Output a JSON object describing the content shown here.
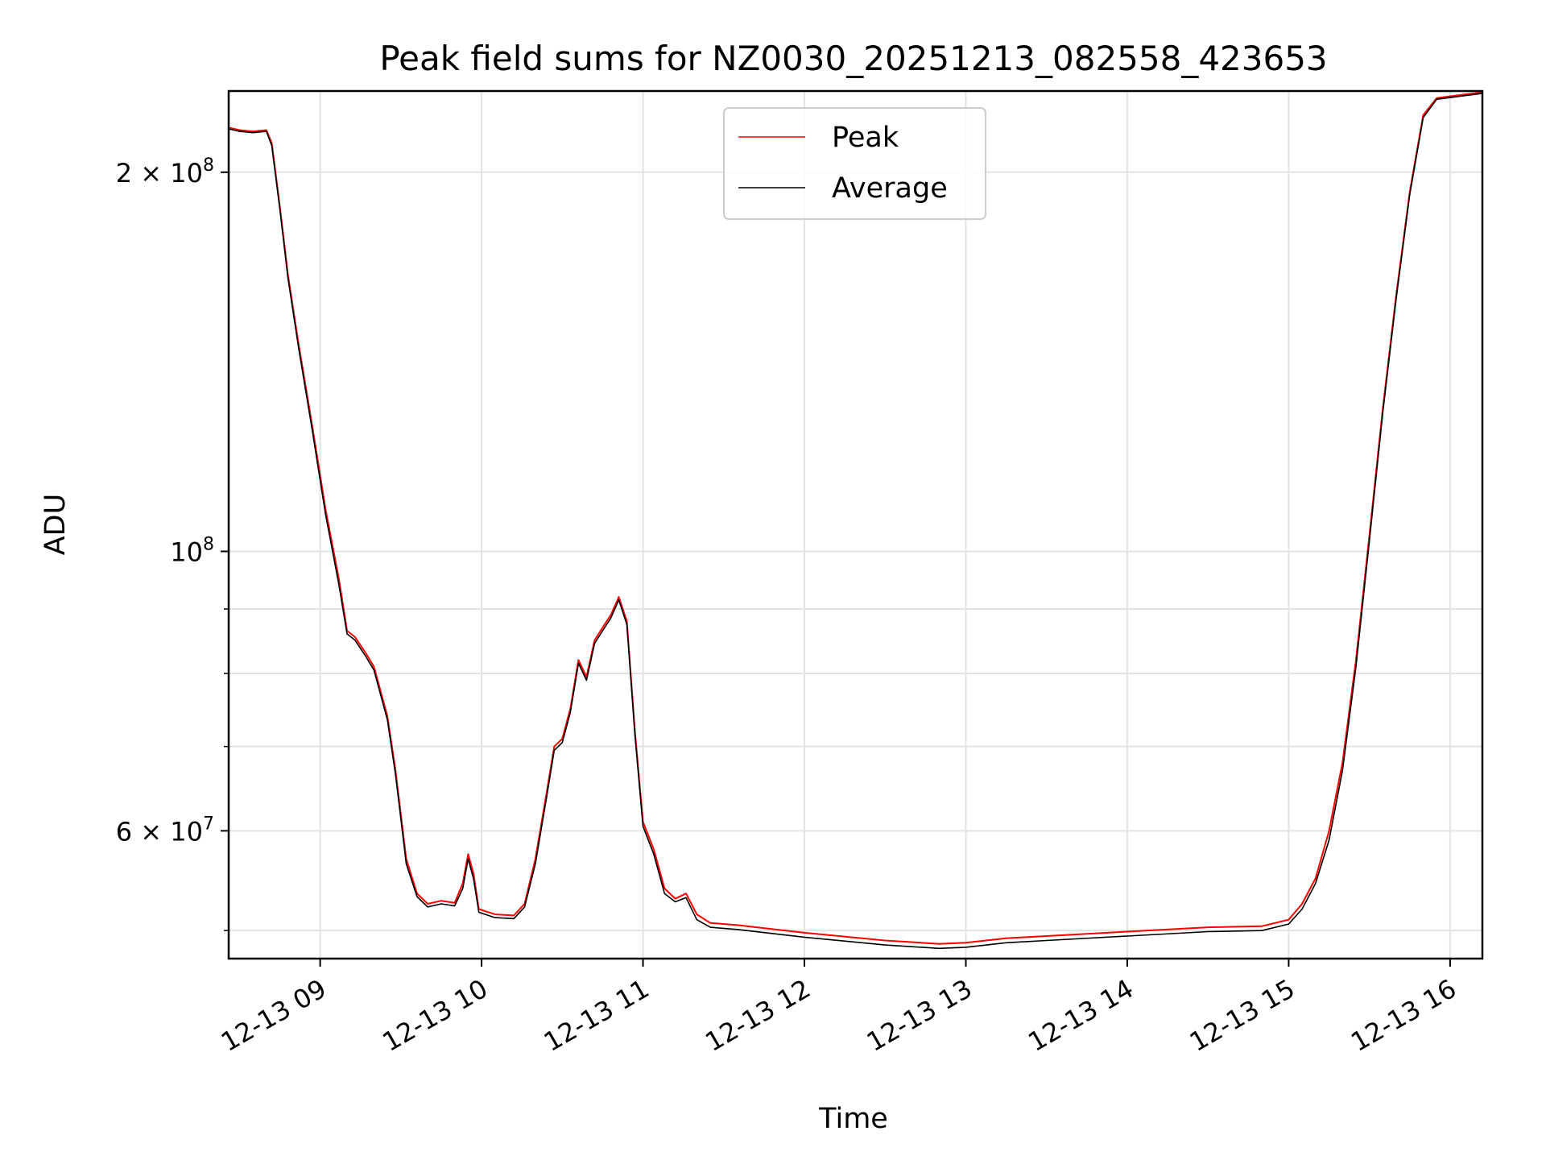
{
  "chart_data": {
    "type": "line",
    "title": "Peak field sums for NZ0030_20251213_082558_423653",
    "xlabel": "Time",
    "ylabel": "ADU",
    "yscale": "log",
    "grid": true,
    "legend_placement": "top-center",
    "xlim": [
      "2025-12-13 08:26",
      "2025-12-13 16:12"
    ],
    "ylim": [
      47500000,
      232000000
    ],
    "x_ticks": [
      {
        "value": "2025-12-13 09:00",
        "label": "12-13 09"
      },
      {
        "value": "2025-12-13 10:00",
        "label": "12-13 10"
      },
      {
        "value": "2025-12-13 11:00",
        "label": "12-13 11"
      },
      {
        "value": "2025-12-13 12:00",
        "label": "12-13 12"
      },
      {
        "value": "2025-12-13 13:00",
        "label": "12-13 13"
      },
      {
        "value": "2025-12-13 14:00",
        "label": "12-13 14"
      },
      {
        "value": "2025-12-13 15:00",
        "label": "12-13 15"
      },
      {
        "value": "2025-12-13 16:00",
        "label": "12-13 16"
      }
    ],
    "y_major_ticks": [
      {
        "value": 60000000,
        "label_base": "6 × 10",
        "label_exp": "7"
      },
      {
        "value": 100000000,
        "label_base": "10",
        "label_exp": "8"
      },
      {
        "value": 200000000,
        "label_base": "2 × 10",
        "label_exp": "8"
      }
    ],
    "y_minor_ticks": [
      50000000,
      70000000,
      80000000,
      90000000
    ],
    "series": [
      {
        "name": "Peak",
        "color": "#ff0000",
        "points": [
          [
            "2025-12-13 08:26",
            217000000
          ],
          [
            "2025-12-13 08:30",
            216000000
          ],
          [
            "2025-12-13 08:35",
            215500000
          ],
          [
            "2025-12-13 08:40",
            216000000
          ],
          [
            "2025-12-13 08:42",
            211000000
          ],
          [
            "2025-12-13 08:45",
            188000000
          ],
          [
            "2025-12-13 08:48",
            166000000
          ],
          [
            "2025-12-13 08:52",
            146000000
          ],
          [
            "2025-12-13 08:57",
            126000000
          ],
          [
            "2025-12-13 09:02",
            108000000
          ],
          [
            "2025-12-13 09:07",
            95000000
          ],
          [
            "2025-12-13 09:10",
            86500000
          ],
          [
            "2025-12-13 09:13",
            85500000
          ],
          [
            "2025-12-13 09:17",
            83000000
          ],
          [
            "2025-12-13 09:20",
            81000000
          ],
          [
            "2025-12-13 09:25",
            74000000
          ],
          [
            "2025-12-13 09:28",
            67000000
          ],
          [
            "2025-12-13 09:32",
            57000000
          ],
          [
            "2025-12-13 09:36",
            53500000
          ],
          [
            "2025-12-13 09:40",
            52500000
          ],
          [
            "2025-12-13 09:45",
            52800000
          ],
          [
            "2025-12-13 09:50",
            52600000
          ],
          [
            "2025-12-13 09:53",
            54500000
          ],
          [
            "2025-12-13 09:55",
            57500000
          ],
          [
            "2025-12-13 09:57",
            55500000
          ],
          [
            "2025-12-13 09:59",
            52000000
          ],
          [
            "2025-12-13 10:05",
            51500000
          ],
          [
            "2025-12-13 10:12",
            51400000
          ],
          [
            "2025-12-13 10:16",
            52500000
          ],
          [
            "2025-12-13 10:20",
            57000000
          ],
          [
            "2025-12-13 10:24",
            64000000
          ],
          [
            "2025-12-13 10:27",
            70000000
          ],
          [
            "2025-12-13 10:30",
            71000000
          ],
          [
            "2025-12-13 10:33",
            75000000
          ],
          [
            "2025-12-13 10:36",
            82000000
          ],
          [
            "2025-12-13 10:39",
            79500000
          ],
          [
            "2025-12-13 10:42",
            85000000
          ],
          [
            "2025-12-13 10:45",
            87000000
          ],
          [
            "2025-12-13 10:48",
            89000000
          ],
          [
            "2025-12-13 10:51",
            92000000
          ],
          [
            "2025-12-13 10:54",
            88000000
          ],
          [
            "2025-12-13 10:57",
            72000000
          ],
          [
            "2025-12-13 11:00",
            61000000
          ],
          [
            "2025-12-13 11:04",
            58000000
          ],
          [
            "2025-12-13 11:08",
            54000000
          ],
          [
            "2025-12-13 11:12",
            53000000
          ],
          [
            "2025-12-13 11:16",
            53500000
          ],
          [
            "2025-12-13 11:20",
            51500000
          ],
          [
            "2025-12-13 11:25",
            50700000
          ],
          [
            "2025-12-13 11:35",
            50500000
          ],
          [
            "2025-12-13 12:00",
            49800000
          ],
          [
            "2025-12-13 12:30",
            49100000
          ],
          [
            "2025-12-13 12:50",
            48800000
          ],
          [
            "2025-12-13 13:00",
            48900000
          ],
          [
            "2025-12-13 13:15",
            49300000
          ],
          [
            "2025-12-13 13:30",
            49500000
          ],
          [
            "2025-12-13 14:00",
            49900000
          ],
          [
            "2025-12-13 14:30",
            50300000
          ],
          [
            "2025-12-13 14:50",
            50400000
          ],
          [
            "2025-12-13 15:00",
            51000000
          ],
          [
            "2025-12-13 15:05",
            52500000
          ],
          [
            "2025-12-13 15:10",
            55000000
          ],
          [
            "2025-12-13 15:15",
            60000000
          ],
          [
            "2025-12-13 15:20",
            68000000
          ],
          [
            "2025-12-13 15:25",
            82000000
          ],
          [
            "2025-12-13 15:30",
            103000000
          ],
          [
            "2025-12-13 15:35",
            130000000
          ],
          [
            "2025-12-13 15:40",
            160000000
          ],
          [
            "2025-12-13 15:45",
            193000000
          ],
          [
            "2025-12-13 15:50",
            222000000
          ],
          [
            "2025-12-13 15:55",
            229000000
          ],
          [
            "2025-12-13 16:05",
            230500000
          ],
          [
            "2025-12-13 16:12",
            231500000
          ]
        ]
      },
      {
        "name": "Average",
        "color": "#000000",
        "points": [
          [
            "2025-12-13 08:26",
            216500000
          ],
          [
            "2025-12-13 08:30",
            215500000
          ],
          [
            "2025-12-13 08:35",
            215000000
          ],
          [
            "2025-12-13 08:40",
            215500000
          ],
          [
            "2025-12-13 08:42",
            210000000
          ],
          [
            "2025-12-13 08:45",
            187000000
          ],
          [
            "2025-12-13 08:48",
            165000000
          ],
          [
            "2025-12-13 08:52",
            145000000
          ],
          [
            "2025-12-13 08:57",
            125000000
          ],
          [
            "2025-12-13 09:02",
            107000000
          ],
          [
            "2025-12-13 09:07",
            94000000
          ],
          [
            "2025-12-13 09:10",
            86000000
          ],
          [
            "2025-12-13 09:13",
            85000000
          ],
          [
            "2025-12-13 09:17",
            82500000
          ],
          [
            "2025-12-13 09:20",
            80500000
          ],
          [
            "2025-12-13 09:25",
            73500000
          ],
          [
            "2025-12-13 09:28",
            66500000
          ],
          [
            "2025-12-13 09:32",
            56500000
          ],
          [
            "2025-12-13 09:36",
            53200000
          ],
          [
            "2025-12-13 09:40",
            52200000
          ],
          [
            "2025-12-13 09:45",
            52500000
          ],
          [
            "2025-12-13 09:50",
            52300000
          ],
          [
            "2025-12-13 09:53",
            54000000
          ],
          [
            "2025-12-13 09:55",
            57000000
          ],
          [
            "2025-12-13 09:57",
            55000000
          ],
          [
            "2025-12-13 09:59",
            51700000
          ],
          [
            "2025-12-13 10:05",
            51200000
          ],
          [
            "2025-12-13 10:12",
            51100000
          ],
          [
            "2025-12-13 10:16",
            52200000
          ],
          [
            "2025-12-13 10:20",
            56500000
          ],
          [
            "2025-12-13 10:24",
            63500000
          ],
          [
            "2025-12-13 10:27",
            69500000
          ],
          [
            "2025-12-13 10:30",
            70500000
          ],
          [
            "2025-12-13 10:33",
            74500000
          ],
          [
            "2025-12-13 10:36",
            81500000
          ],
          [
            "2025-12-13 10:39",
            79000000
          ],
          [
            "2025-12-13 10:42",
            84500000
          ],
          [
            "2025-12-13 10:45",
            86500000
          ],
          [
            "2025-12-13 10:48",
            88500000
          ],
          [
            "2025-12-13 10:51",
            91500000
          ],
          [
            "2025-12-13 10:54",
            87500000
          ],
          [
            "2025-12-13 10:57",
            71500000
          ],
          [
            "2025-12-13 11:00",
            60500000
          ],
          [
            "2025-12-13 11:04",
            57500000
          ],
          [
            "2025-12-13 11:08",
            53500000
          ],
          [
            "2025-12-13 11:12",
            52700000
          ],
          [
            "2025-12-13 11:16",
            53100000
          ],
          [
            "2025-12-13 11:20",
            51000000
          ],
          [
            "2025-12-13 11:25",
            50300000
          ],
          [
            "2025-12-13 11:35",
            50100000
          ],
          [
            "2025-12-13 12:00",
            49400000
          ],
          [
            "2025-12-13 12:30",
            48700000
          ],
          [
            "2025-12-13 12:50",
            48400000
          ],
          [
            "2025-12-13 13:00",
            48500000
          ],
          [
            "2025-12-13 13:15",
            48900000
          ],
          [
            "2025-12-13 13:30",
            49100000
          ],
          [
            "2025-12-13 14:00",
            49500000
          ],
          [
            "2025-12-13 14:30",
            49900000
          ],
          [
            "2025-12-13 14:50",
            50000000
          ],
          [
            "2025-12-13 15:00",
            50600000
          ],
          [
            "2025-12-13 15:05",
            52000000
          ],
          [
            "2025-12-13 15:10",
            54500000
          ],
          [
            "2025-12-13 15:15",
            59000000
          ],
          [
            "2025-12-13 15:20",
            67000000
          ],
          [
            "2025-12-13 15:25",
            81000000
          ],
          [
            "2025-12-13 15:30",
            102000000
          ],
          [
            "2025-12-13 15:35",
            129000000
          ],
          [
            "2025-12-13 15:40",
            159000000
          ],
          [
            "2025-12-13 15:45",
            192000000
          ],
          [
            "2025-12-13 15:50",
            221000000
          ],
          [
            "2025-12-13 15:55",
            228500000
          ],
          [
            "2025-12-13 16:05",
            230000000
          ],
          [
            "2025-12-13 16:12",
            231000000
          ]
        ]
      }
    ]
  }
}
